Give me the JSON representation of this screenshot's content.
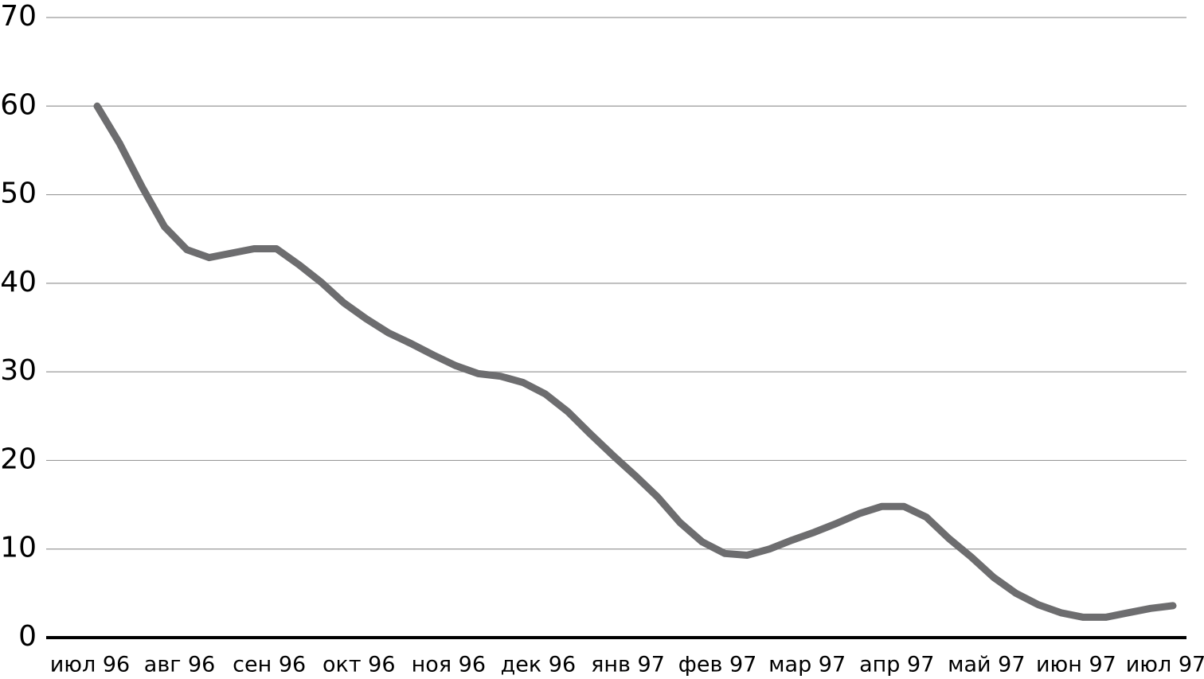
{
  "chart_data": {
    "type": "line",
    "categories": [
      "июл 96",
      null,
      null,
      null,
      "авг 96",
      null,
      null,
      null,
      "сен 96",
      null,
      null,
      null,
      "окт 96",
      null,
      null,
      null,
      "ноя 96",
      null,
      null,
      null,
      "дек 96",
      null,
      null,
      null,
      "янв 97",
      null,
      null,
      null,
      "фев 97",
      null,
      null,
      null,
      "мар 97",
      null,
      null,
      null,
      "апр 97",
      null,
      null,
      null,
      "май 97",
      null,
      null,
      null,
      "июн 97",
      null,
      null,
      null,
      "июл 97"
    ],
    "values": [
      60,
      55.8,
      50.9,
      46.4,
      43.8,
      42.9,
      43.4,
      43.9,
      43.9,
      42.1,
      40.1,
      37.8,
      36.0,
      34.4,
      33.2,
      31.9,
      30.7,
      29.8,
      29.5,
      28.8,
      27.5,
      25.5,
      23.0,
      20.6,
      18.3,
      15.9,
      13.0,
      10.8,
      9.5,
      9.3,
      10.0,
      11.0,
      11.9,
      12.9,
      14.0,
      14.8,
      14.8,
      13.6,
      11.2,
      9.1,
      6.8,
      5.0,
      3.7,
      2.8,
      2.3,
      2.3,
      2.8,
      3.3,
      3.6
    ],
    "color": "#6d6d6f",
    "ylim": [
      0,
      70
    ],
    "yticks": [
      0,
      10,
      20,
      30,
      40,
      50,
      60,
      70
    ],
    "grid": true
  }
}
